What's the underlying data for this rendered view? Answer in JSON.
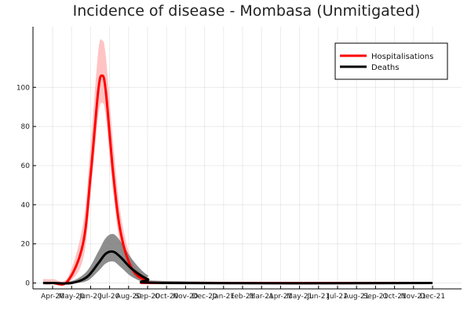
{
  "chart_data": {
    "type": "line",
    "title": "Incidence of disease - Mombasa (Unmitigated)",
    "xlabel": "",
    "ylabel": "",
    "ylim": [
      -3,
      131
    ],
    "yticks": [
      0,
      20,
      40,
      60,
      80,
      100
    ],
    "x_tick_labels": [
      "Apr-20",
      "May-20",
      "Jun-20",
      "Jul-20",
      "Aug-20",
      "Sep-20",
      "Oct-20",
      "Nov-20",
      "Dec-20",
      "Jan-21",
      "Feb-21",
      "Mar-21",
      "Apr-21",
      "May-21",
      "Jun-21",
      "Jul-21",
      "Aug-21",
      "Sep-21",
      "Oct-21",
      "Nov-21",
      "Dec-21"
    ],
    "grid": true,
    "legend_position": "top-right",
    "colors": {
      "hospitalisations": "#ff0000",
      "hospitalisations_band": "#ffbcbc",
      "deaths": "#000000",
      "deaths_band": "#7a7a7a"
    },
    "series": [
      {
        "name": "Hospitalisations",
        "x": [
          "Mar-20",
          "Apr-20",
          "May-20",
          "Jun-20",
          "Jun-20",
          "Jul-20",
          "Jul-20",
          "Jul-20",
          "Aug-20",
          "Aug-20",
          "Sep-20",
          "Oct-20",
          "Nov-20",
          "Dec-21"
        ],
        "x_index": [
          -0.5,
          0,
          0.8,
          1.6,
          2.0,
          2.4,
          2.6,
          2.8,
          3.2,
          3.6,
          4.2,
          5.0,
          6.0,
          20.0
        ],
        "values": [
          0,
          0,
          1,
          20,
          55,
          98,
          106,
          98,
          55,
          25,
          7,
          1,
          0,
          0
        ],
        "lower": [
          0,
          0,
          0,
          12,
          45,
          85,
          92,
          85,
          45,
          18,
          4,
          0,
          0,
          0
        ],
        "upper": [
          2,
          2,
          3,
          30,
          70,
          118,
          124,
          116,
          70,
          34,
          11,
          3,
          1,
          0
        ]
      },
      {
        "name": "Deaths",
        "x": [
          "Mar-20",
          "Apr-20",
          "May-20",
          "Jun-20",
          "Jul-20",
          "Jul-20",
          "Aug-20",
          "Aug-20",
          "Sep-20",
          "Oct-20",
          "Nov-20",
          "Dec-21"
        ],
        "x_index": [
          -0.5,
          0,
          1.0,
          1.8,
          2.4,
          2.8,
          3.2,
          3.6,
          4.2,
          5.0,
          6.0,
          20.0
        ],
        "values": [
          0,
          0,
          0,
          3,
          10,
          15,
          16,
          13,
          7,
          2,
          0,
          0
        ],
        "lower": [
          0,
          0,
          0,
          1,
          6,
          10,
          11,
          8,
          3,
          0,
          0,
          0
        ],
        "upper": [
          0,
          0,
          1,
          6,
          16,
          23,
          25,
          21,
          12,
          4,
          1,
          0
        ]
      }
    ]
  }
}
